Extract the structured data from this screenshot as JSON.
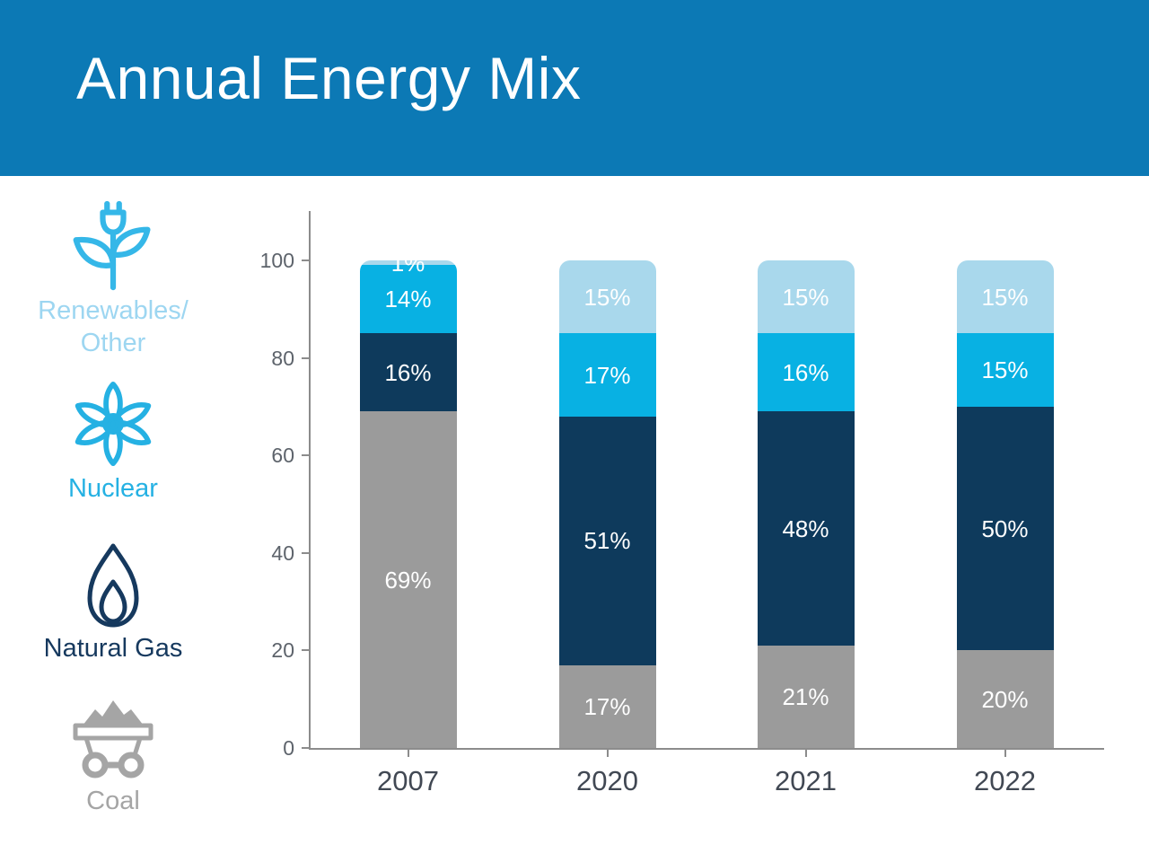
{
  "header": {
    "title": "Annual Energy Mix",
    "bg_color": "#0c79b5",
    "text_color": "#ffffff"
  },
  "legend": {
    "position": "left",
    "items": [
      {
        "id": "renewables",
        "label": "Renewables/ Other",
        "label_lines": [
          "Renewables/",
          "Other"
        ],
        "icon": "plug-plant-icon",
        "icon_color": "#35b7e8",
        "label_color": "#9dd6f1"
      },
      {
        "id": "nuclear",
        "label": "Nuclear",
        "icon": "atom-icon",
        "icon_color": "#25b1e3",
        "label_color": "#25b1e3"
      },
      {
        "id": "natural-gas",
        "label": "Natural Gas",
        "icon": "flame-icon",
        "icon_color": "#16395e",
        "label_color": "#16395e"
      },
      {
        "id": "coal",
        "label": "Coal",
        "icon": "coal-cart-icon",
        "icon_color": "#a5a5a5",
        "label_color": "#a5a5a5"
      }
    ]
  },
  "chart_data": {
    "type": "bar",
    "stacked": true,
    "title": "Annual Energy Mix",
    "categories": [
      "2007",
      "2020",
      "2021",
      "2022"
    ],
    "series": [
      {
        "name": "Coal",
        "color": "#9b9b9b",
        "values": [
          69,
          17,
          21,
          20
        ]
      },
      {
        "name": "Natural Gas",
        "color": "#0e3a5c",
        "values": [
          16,
          51,
          48,
          50
        ]
      },
      {
        "name": "Nuclear",
        "color": "#08b1e3",
        "values": [
          14,
          17,
          16,
          15
        ]
      },
      {
        "name": "Renewables/Other",
        "color": "#a9d8ec",
        "values": [
          1,
          15,
          15,
          15
        ]
      }
    ],
    "value_suffix": "%",
    "y_ticks": [
      0,
      20,
      40,
      60,
      80,
      100
    ],
    "ylim": [
      0,
      100
    ],
    "grid": false,
    "legend_position": "left",
    "bar_label_color": "#ffffff",
    "axis_color": "#8c8c8c",
    "tick_label_color": "#5d636b",
    "category_label_color": "#414853"
  }
}
